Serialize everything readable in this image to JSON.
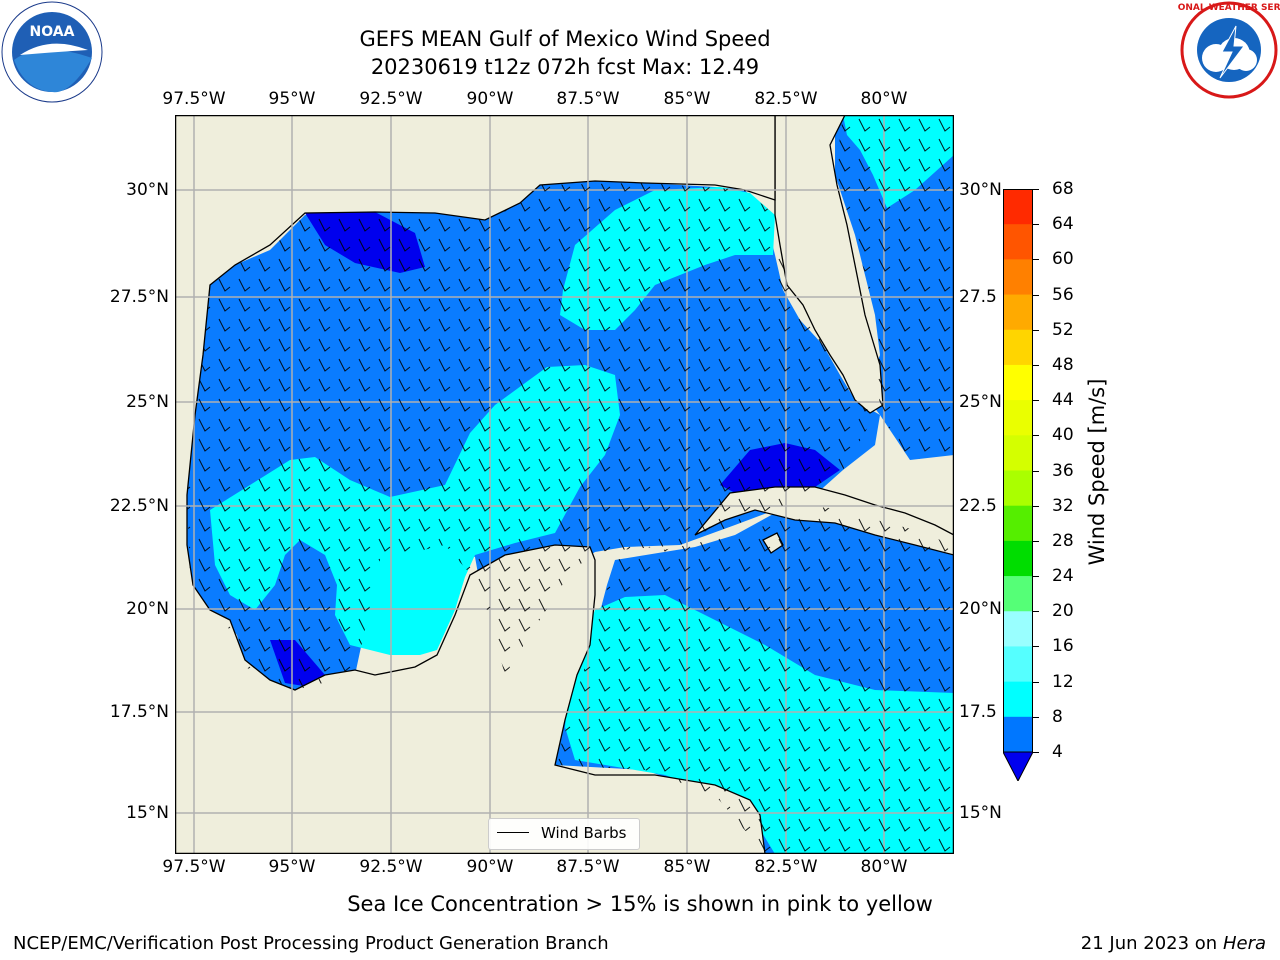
{
  "title_line1": "GEFS MEAN Gulf of Mexico Wind Speed",
  "title_line2": "20230619 t12z 072h fcst   Max: 12.49",
  "lon_ticks": [
    "97.5°W",
    "95°W",
    "92.5°W",
    "90°W",
    "87.5°W",
    "85°W",
    "82.5°W",
    "80°W"
  ],
  "lat_ticks_left": [
    "30°N",
    "27.5°N",
    "25°N",
    "22.5°N",
    "20°N",
    "17.5°N",
    "15°N"
  ],
  "lat_ticks_right": [
    "30°N",
    "27.5",
    "25°N",
    "22.5",
    "20°N",
    "17.5",
    "15°N"
  ],
  "legend_label": "Wind Barbs",
  "colorbar": {
    "title": "Wind Speed [m/s]",
    "labels": [
      "68",
      "64",
      "60",
      "56",
      "52",
      "48",
      "44",
      "40",
      "36",
      "32",
      "28",
      "24",
      "20",
      "16",
      "12",
      "8",
      "4"
    ],
    "colors": [
      "#ff0000",
      "#ff2a00",
      "#ff5500",
      "#ff8000",
      "#ffaa00",
      "#ffd500",
      "#ffff00",
      "#eaff00",
      "#d4ff00",
      "#aaff00",
      "#55ee00",
      "#00dd00",
      "#55ff77",
      "#99ffff",
      "#55ffff",
      "#00ffff",
      "#0077ff"
    ],
    "under_color": "#0000ee"
  },
  "colors": {
    "land": "#efeedc",
    "level_4_8": "#0a7cff",
    "level_under": "#0000ee",
    "level_8_12": "#00ffff",
    "grid": "#b0b0b0"
  },
  "footer_note": "Sea Ice Concentration > 15% is shown in pink to yellow",
  "footer_left": "NCEP/EMC/Verification Post Processing Product Generation Branch",
  "footer_date": "21 Jun 2023 on",
  "footer_host": "Hera",
  "logos": {
    "left": "NOAA",
    "right": "NATIONAL WEATHER SERVICE"
  }
}
